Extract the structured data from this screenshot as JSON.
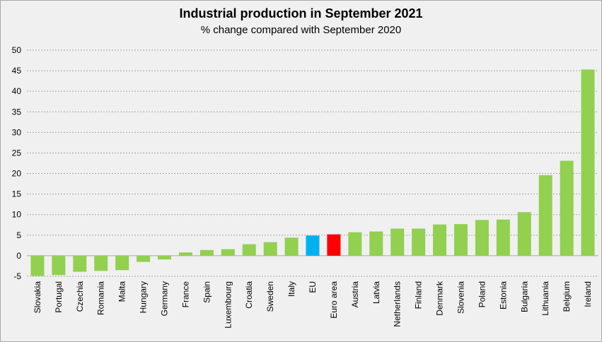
{
  "chart_data": {
    "type": "bar",
    "title": "Industrial production in September 2021",
    "subtitle": "% change compared with September 2020",
    "xlabel": "",
    "ylabel": "",
    "ylim": [
      -5,
      50
    ],
    "yticks": [
      -5,
      0,
      5,
      10,
      15,
      20,
      25,
      30,
      35,
      40,
      45,
      50
    ],
    "grid": true,
    "categories": [
      "Slovakia",
      "Portugal",
      "Czechia",
      "Romania",
      "Malta",
      "Hungary",
      "Germany",
      "France",
      "Spain",
      "Luxembourg",
      "Croatia",
      "Sweden",
      "Italy",
      "EU",
      "Euro area",
      "Austria",
      "Latvia",
      "Netherlands",
      "Finland",
      "Denmark",
      "Slovenia",
      "Poland",
      "Estonia",
      "Bulgaria",
      "Lithuania",
      "Belgium",
      "Ireland"
    ],
    "values": [
      -4.9,
      -4.7,
      -3.9,
      -3.7,
      -3.5,
      -1.5,
      -0.9,
      0.8,
      1.4,
      1.6,
      2.8,
      3.3,
      4.4,
      4.9,
      5.2,
      5.7,
      5.9,
      6.6,
      6.6,
      7.6,
      7.7,
      8.7,
      8.8,
      10.6,
      19.6,
      23.1,
      45.3
    ],
    "colors": {
      "default": "#92d050",
      "EU": "#00b0f0",
      "Euro area": "#ff0000"
    }
  }
}
